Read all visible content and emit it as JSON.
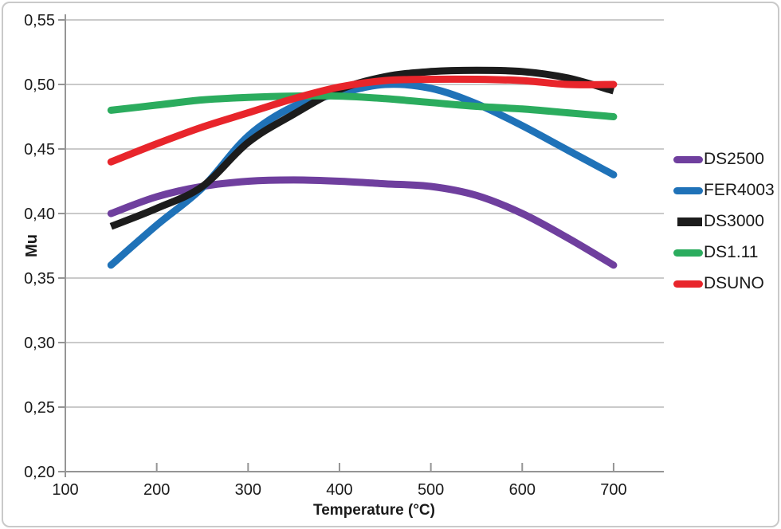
{
  "chart_data": {
    "type": "line",
    "title": "",
    "xlabel": "Temperature (°C)",
    "ylabel": "Mu",
    "xlim": [
      100,
      755
    ],
    "ylim": [
      0.2,
      0.55
    ],
    "grid": "horizontal",
    "legend_position": "right",
    "x_ticks": [
      {
        "value": 100,
        "label": "100"
      },
      {
        "value": 200,
        "label": "200"
      },
      {
        "value": 300,
        "label": "300"
      },
      {
        "value": 400,
        "label": "400"
      },
      {
        "value": 500,
        "label": "500"
      },
      {
        "value": 600,
        "label": "600"
      },
      {
        "value": 700,
        "label": "700"
      }
    ],
    "y_ticks": [
      {
        "value": 0.55,
        "label": "0,55"
      },
      {
        "value": 0.5,
        "label": "0,50"
      },
      {
        "value": 0.45,
        "label": "0,45"
      },
      {
        "value": 0.4,
        "label": "0,40"
      },
      {
        "value": 0.35,
        "label": "0,35"
      },
      {
        "value": 0.3,
        "label": "0,30"
      },
      {
        "value": 0.25,
        "label": "0,25"
      },
      {
        "value": 0.2,
        "label": "0,20"
      }
    ],
    "x": [
      150,
      200,
      250,
      300,
      350,
      400,
      450,
      500,
      550,
      600,
      650,
      700
    ],
    "series": [
      {
        "name": "DS2500",
        "color": "#6F3F9E",
        "swatch": "round",
        "linecap": "round",
        "values": [
          0.4,
          0.413,
          0.421,
          0.425,
          0.426,
          0.425,
          0.423,
          0.421,
          0.414,
          0.4,
          0.381,
          0.36
        ]
      },
      {
        "name": "FER4003",
        "color": "#1F72B8",
        "swatch": "round",
        "linecap": "round",
        "values": [
          0.36,
          0.391,
          0.42,
          0.46,
          0.483,
          0.493,
          0.5,
          0.497,
          0.485,
          0.468,
          0.449,
          0.43
        ]
      },
      {
        "name": "DS3000",
        "color": "#1C1C1C",
        "swatch": "square",
        "linecap": "butt",
        "values": [
          0.39,
          0.404,
          0.421,
          0.455,
          0.477,
          0.496,
          0.506,
          0.51,
          0.511,
          0.51,
          0.505,
          0.495
        ]
      },
      {
        "name": "DS1.11",
        "color": "#2BAC5E",
        "swatch": "round",
        "linecap": "round",
        "values": [
          0.48,
          0.484,
          0.488,
          0.49,
          0.491,
          0.491,
          0.489,
          0.486,
          0.483,
          0.481,
          0.478,
          0.475
        ]
      },
      {
        "name": "DSUNO",
        "color": "#E8252B",
        "swatch": "round",
        "linecap": "round",
        "values": [
          0.44,
          0.454,
          0.467,
          0.478,
          0.489,
          0.498,
          0.503,
          0.504,
          0.504,
          0.503,
          0.5,
          0.5
        ]
      }
    ]
  },
  "style": {
    "grid_color": "#b9b9b9",
    "axis_color": "#959595",
    "text_color": "#1a1a1a",
    "border_color": "#c9c9c9",
    "line_width": 9
  }
}
